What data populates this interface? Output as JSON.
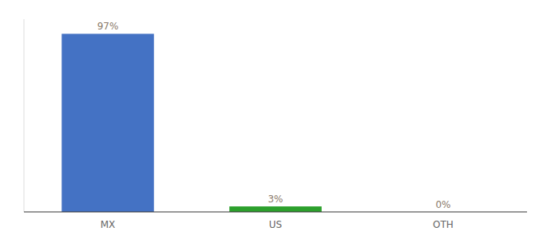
{
  "chart_data": {
    "type": "bar",
    "categories": [
      "MX",
      "US",
      "OTH"
    ],
    "values": [
      97,
      3,
      0
    ],
    "value_labels": [
      "97%",
      "3%",
      "0%"
    ],
    "colors": [
      "#4472c4",
      "#2ca02c",
      "#4472c4"
    ],
    "ylim": [
      0,
      105
    ],
    "data_labels": true,
    "tick_labels": "x",
    "grid": false
  }
}
